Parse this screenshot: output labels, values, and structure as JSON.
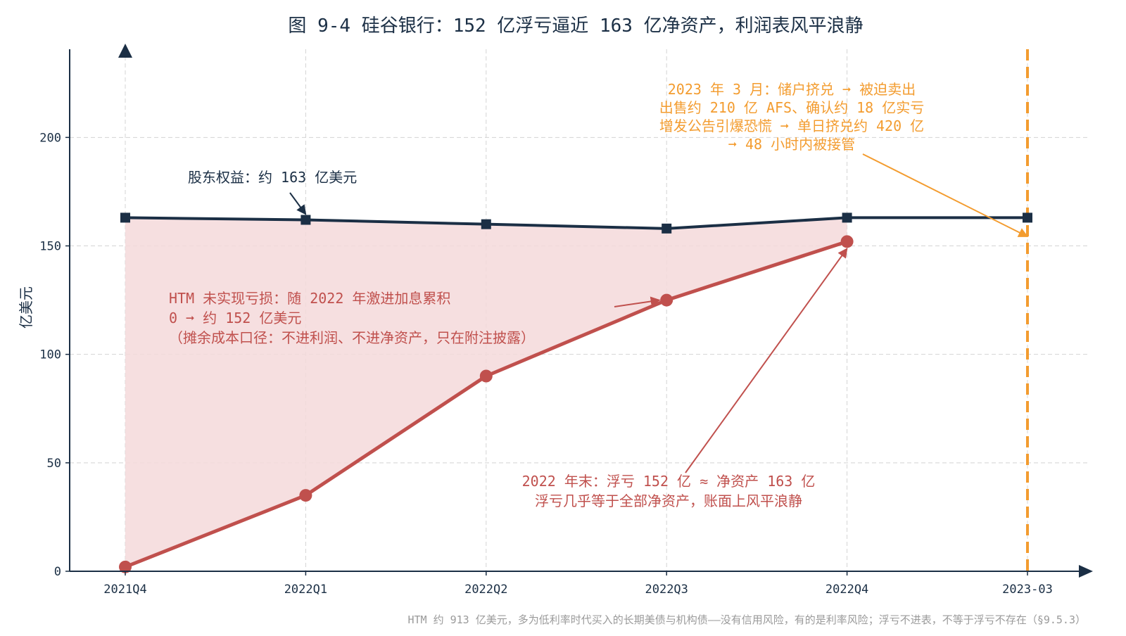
{
  "chart_data": {
    "type": "line",
    "title": "图 9-4 硅谷银行：152 亿浮亏逼近 163 亿净资产，利润表风平浪静",
    "xlabel": "",
    "ylabel": "亿美元",
    "categories": [
      "2021Q4",
      "2022Q1",
      "2022Q2",
      "2022Q3",
      "2022Q4",
      "2023-03"
    ],
    "ylim": [
      0,
      240
    ],
    "yticks": [
      0,
      50,
      100,
      150,
      200
    ],
    "grid": true,
    "series": [
      {
        "key": "equity",
        "values": [
          163,
          162,
          160,
          158,
          163,
          163
        ],
        "color": "#1b2f45"
      },
      {
        "key": "htm_loss",
        "values": [
          2,
          35,
          90,
          125,
          152,
          null
        ],
        "color": "#c0504d"
      }
    ],
    "shaded_region": {
      "between": [
        "equity",
        "htm_loss"
      ],
      "color": "#f5d9da"
    },
    "event_line": {
      "at": "2023-03",
      "color": "#f39c2f",
      "style": "dashed"
    },
    "annotations": [
      {
        "key": "equity_label",
        "lines": [
          "股东权益：约 163 亿美元"
        ],
        "color": "#1b2f45",
        "arrow_to": {
          "x": "2022Q1",
          "y": 162
        }
      },
      {
        "key": "htm_label",
        "lines": [
          "HTM 未实现亏损：随 2022 年激进加息累积",
          "0 ➞ 约 152 亿美元",
          "（摊余成本口径：不进利润、不进净资产，只在附注披露）"
        ],
        "color": "#c0504d",
        "arrow_to": {
          "x": "2022Q3",
          "y": 125
        }
      },
      {
        "key": "yearend_label",
        "lines": [
          "2022 年末：浮亏 152 亿 ≈ 净资产 163 亿",
          "浮亏几乎等于全部净资产，账面上风平浪静"
        ],
        "color": "#c0504d",
        "arrow_to": {
          "x": "2022Q4",
          "y": 152
        }
      },
      {
        "key": "collapse_label",
        "lines": [
          "2023 年 3 月：储户挤兑 ➞ 被迫卖出",
          "出售约 210 亿 AFS、确认约 18 亿实亏",
          "增发公告引爆恐慌 ➞ 单日挤兑约 420 亿",
          "➞ 48 小时内被接管"
        ],
        "color": "#f39c2f",
        "arrow_to": {
          "x": "2023-03",
          "y": 153
        }
      }
    ],
    "footnote": "HTM 约 913 亿美元，多为低利率时代买入的长期美债与机构债——没有信用风险，有的是利率风险；浮亏不进表，不等于浮亏不存在（§9.5.3）"
  }
}
